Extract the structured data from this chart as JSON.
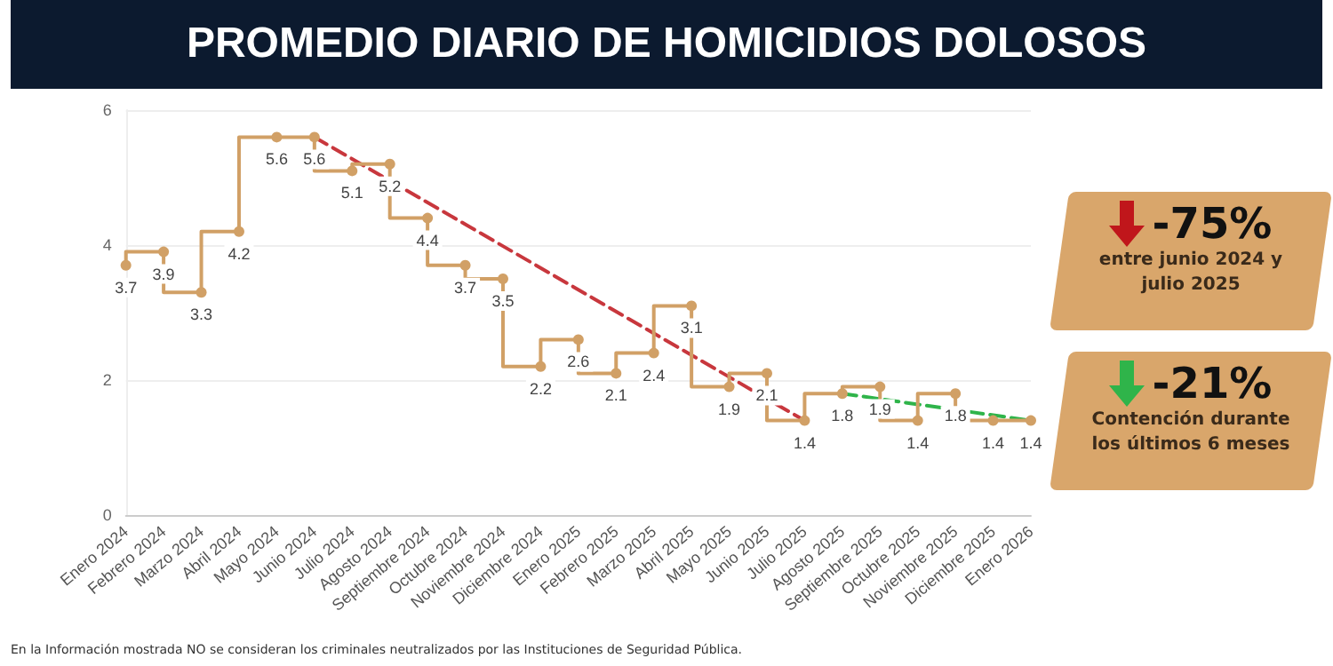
{
  "chart_data": {
    "type": "step",
    "title": "PROMEDIO DIARIO DE HOMICIDIOS DOLOSOS",
    "categories": [
      "Enero 2024",
      "Febrero 2024",
      "Marzo 2024",
      "Abril 2024",
      "Mayo 2024",
      "Junio 2024",
      "Julio 2024",
      "Agosto 2024",
      "Septiembre 2024",
      "Octubre 2024",
      "Noviembre 2024",
      "Diciembre 2024",
      "Enero 2025",
      "Febrero 2025",
      "Marzo 2025",
      "Abril 2025",
      "Mayo 2025",
      "Junio 2025",
      "Julio 2025",
      "Agosto 2025",
      "Septiembre 2025",
      "Octubre 2025",
      "Noviembre 2025",
      "Diciembre 2025",
      "Enero 2026"
    ],
    "series": [
      {
        "color": "#d1a066",
        "marker": "circle",
        "data_labels": true,
        "values": [
          3.7,
          3.9,
          3.3,
          4.2,
          5.6,
          5.6,
          5.1,
          5.2,
          4.4,
          3.7,
          3.5,
          2.2,
          2.6,
          2.1,
          2.4,
          3.1,
          1.9,
          2.1,
          1.4,
          1.8,
          1.9,
          1.4,
          1.8,
          1.4,
          1.4
        ]
      },
      {
        "type": "line",
        "color": "#c8373d",
        "line_style": "dashed",
        "marker": "none",
        "x": [
          "Junio 2024",
          "Julio 2025"
        ],
        "values": [
          5.6,
          1.4
        ]
      },
      {
        "type": "line",
        "color": "#2fb44a",
        "line_style": "dashed",
        "marker": "none",
        "x": [
          "Agosto 2025",
          "Enero 2026"
        ],
        "values": [
          1.8,
          1.4
        ]
      }
    ],
    "ylim": [
      0,
      6
    ],
    "yticks": [
      0,
      2,
      4,
      6
    ],
    "grid": "y",
    "annotations": [
      "-75%",
      "entre junio 2024 y julio 2025",
      "-21%",
      "Contención durante los últimos 6 meses",
      "En la Información mostrada NO se consideran los criminales neutralizados por las Instituciones de Seguridad Pública."
    ]
  }
}
